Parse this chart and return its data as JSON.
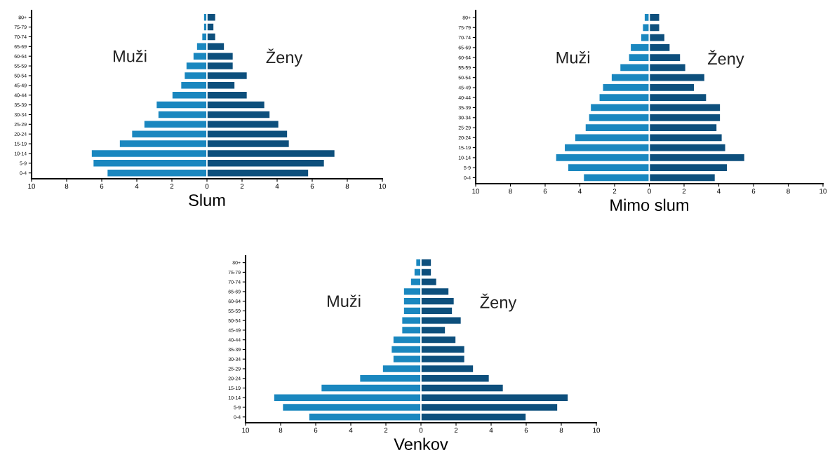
{
  "chart_data": [
    {
      "type": "bar",
      "orientation": "horizontal",
      "stacked": true,
      "xlabel": "Slum",
      "categories": [
        "80+",
        "75-79",
        "70-74",
        "65-69",
        "60-64",
        "55-59",
        "50-54",
        "45-49",
        "40-44",
        "35-39",
        "30-34",
        "25-29",
        "20-24",
        "15-19",
        "10-14",
        "5-9",
        "0-4"
      ],
      "series": [
        {
          "name": "Muži",
          "color": "#1a87bf",
          "values": [
            -0.2,
            -0.2,
            -0.3,
            -0.6,
            -0.8,
            -1.2,
            -1.3,
            -1.5,
            -2.0,
            -2.9,
            -2.8,
            -3.6,
            -4.3,
            -5.0,
            -6.6,
            -6.5,
            -5.7
          ]
        },
        {
          "name": "Ženy",
          "color": "#0d4f7c",
          "values": [
            0.5,
            0.4,
            0.5,
            1.0,
            1.5,
            1.5,
            2.3,
            1.6,
            2.3,
            3.3,
            3.6,
            4.1,
            4.6,
            4.7,
            7.3,
            6.7,
            5.8
          ]
        }
      ],
      "xlim": [
        -10,
        10
      ],
      "xticks": [
        {
          "value": -10,
          "label": "10"
        },
        {
          "value": -8,
          "label": "8"
        },
        {
          "value": -6,
          "label": "6"
        },
        {
          "value": -4,
          "label": "4"
        },
        {
          "value": -2,
          "label": "2"
        },
        0,
        2,
        4,
        6,
        8,
        10
      ],
      "grid": false,
      "legend": false
    },
    {
      "type": "bar",
      "orientation": "horizontal",
      "stacked": true,
      "xlabel": "Mimo slum",
      "categories": [
        "80+",
        "75-79",
        "70-74",
        "65-69",
        "60-64",
        "55-59",
        "50-54",
        "45-49",
        "40-44",
        "35-39",
        "30-34",
        "25-29",
        "20-24",
        "15-19",
        "10-14",
        "5-9",
        "0-4"
      ],
      "series": [
        {
          "name": "Muži",
          "color": "#1a87bf",
          "values": [
            -0.3,
            -0.4,
            -0.5,
            -1.1,
            -1.2,
            -1.7,
            -2.2,
            -2.7,
            -2.9,
            -3.4,
            -3.5,
            -3.7,
            -4.3,
            -4.9,
            -5.4,
            -4.7,
            -3.8
          ]
        },
        {
          "name": "Ženy",
          "color": "#0d4f7c",
          "values": [
            0.6,
            0.6,
            0.9,
            1.2,
            1.8,
            2.1,
            3.2,
            2.6,
            3.3,
            4.1,
            4.1,
            3.9,
            4.2,
            4.4,
            5.5,
            4.5,
            3.8
          ]
        }
      ],
      "xlim": [
        -10,
        10
      ],
      "xticks": [
        {
          "value": -10,
          "label": "10"
        },
        {
          "value": -8,
          "label": "8"
        },
        {
          "value": -6,
          "label": "6"
        },
        {
          "value": -4,
          "label": "4"
        },
        {
          "value": -2,
          "label": "2"
        },
        0,
        2,
        4,
        6,
        8,
        10
      ],
      "grid": false,
      "legend": false
    },
    {
      "type": "bar",
      "orientation": "horizontal",
      "stacked": true,
      "xlabel": "Venkov",
      "categories": [
        "80+",
        "75-79",
        "70-74",
        "65-69",
        "60-64",
        "55-59",
        "50-54",
        "45-49",
        "40-44",
        "35-39",
        "30-34",
        "25-29",
        "20-24",
        "15-19",
        "10-14",
        "5-9",
        "0-4"
      ],
      "series": [
        {
          "name": "Muži",
          "color": "#1a87bf",
          "values": [
            -0.3,
            -0.4,
            -0.6,
            -1.0,
            -1.0,
            -1.0,
            -1.1,
            -1.1,
            -1.6,
            -1.7,
            -1.6,
            -2.2,
            -3.5,
            -5.7,
            -8.4,
            -7.9,
            -6.4
          ]
        },
        {
          "name": "Ženy",
          "color": "#0d4f7c",
          "values": [
            0.6,
            0.6,
            0.9,
            1.6,
            1.9,
            1.8,
            2.3,
            1.4,
            2.0,
            2.5,
            2.5,
            3.0,
            3.9,
            4.7,
            8.4,
            7.8,
            6.0
          ]
        }
      ],
      "xlim": [
        -10,
        10
      ],
      "xticks": [
        {
          "value": -10,
          "label": "10"
        },
        {
          "value": -8,
          "label": "8"
        },
        {
          "value": -6,
          "label": "6"
        },
        {
          "value": -4,
          "label": "4"
        },
        {
          "value": -2,
          "label": "2"
        },
        0,
        2,
        4,
        6,
        8,
        10
      ],
      "grid": false,
      "legend": false
    }
  ]
}
